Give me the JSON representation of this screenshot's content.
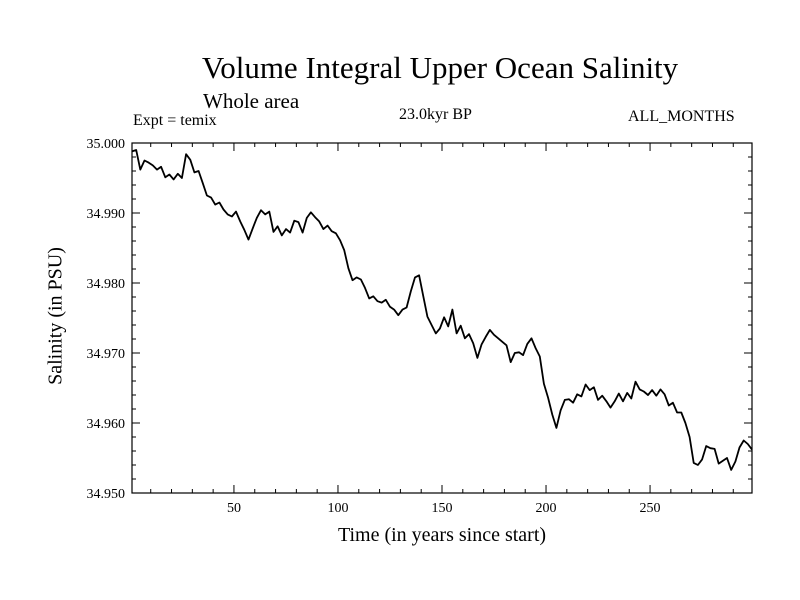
{
  "chart_data": {
    "type": "line",
    "title": "Volume Integral Upper Ocean Salinity",
    "subtitle": "Whole area",
    "annotations": {
      "experiment": "Expt = temix",
      "period": "23.0kyr BP",
      "months": "ALL_MONTHS"
    },
    "xlabel": "Time (in years since start)",
    "ylabel": "Salinity (in PSU)",
    "xlim": [
      1,
      299
    ],
    "ylim": [
      34.95,
      35.0
    ],
    "x_ticks": [
      50,
      100,
      150,
      200,
      250
    ],
    "x_tick_labels": [
      "50",
      "100",
      "150",
      "200",
      "250"
    ],
    "y_ticks": [
      34.95,
      34.96,
      34.97,
      34.98,
      34.99,
      35.0
    ],
    "y_tick_labels": [
      "34.950",
      "34.960",
      "34.970",
      "34.980",
      "34.990",
      "35.000"
    ],
    "grid": false,
    "color": "#000000",
    "series": [
      {
        "name": "Salinity",
        "x": [
          1,
          3,
          5,
          7,
          9,
          11,
          13,
          15,
          17,
          19,
          21,
          23,
          25,
          27,
          29,
          31,
          33,
          35,
          37,
          39,
          41,
          43,
          45,
          47,
          49,
          51,
          53,
          55,
          57,
          59,
          61,
          63,
          65,
          67,
          69,
          71,
          73,
          75,
          77,
          79,
          81,
          83,
          85,
          87,
          89,
          91,
          93,
          95,
          97,
          99,
          101,
          103,
          105,
          107,
          109,
          111,
          113,
          115,
          117,
          119,
          121,
          123,
          125,
          127,
          129,
          131,
          133,
          135,
          137,
          139,
          141,
          143,
          145,
          147,
          149,
          151,
          153,
          155,
          157,
          159,
          161,
          163,
          165,
          167,
          169,
          171,
          173,
          175,
          177,
          179,
          181,
          183,
          185,
          187,
          189,
          191,
          193,
          195,
          197,
          199,
          201,
          203,
          205,
          207,
          209,
          211,
          213,
          215,
          217,
          219,
          221,
          223,
          225,
          227,
          229,
          231,
          233,
          235,
          237,
          239,
          241,
          243,
          245,
          247,
          249,
          251,
          253,
          255,
          257,
          259,
          261,
          263,
          265,
          267,
          269,
          271,
          273,
          275,
          277,
          279,
          281,
          283,
          285,
          287,
          289,
          291,
          293,
          295,
          297,
          299
        ],
        "values": [
          34.9988,
          34.999,
          34.9962,
          34.9975,
          34.9972,
          34.9968,
          34.9962,
          34.9966,
          34.9951,
          34.9955,
          34.9948,
          34.9956,
          34.995,
          34.9984,
          34.9976,
          34.9958,
          34.996,
          34.9943,
          34.9925,
          34.9922,
          34.9912,
          34.9915,
          34.9905,
          34.9898,
          34.9895,
          34.9902,
          34.9888,
          34.9876,
          34.9862,
          34.9878,
          34.9893,
          34.9904,
          34.9898,
          34.9902,
          34.9873,
          34.9881,
          34.9868,
          34.9877,
          34.9872,
          34.9889,
          34.9887,
          34.9872,
          34.9893,
          34.9901,
          34.9894,
          34.9888,
          34.9877,
          34.9882,
          34.9874,
          34.9871,
          34.9861,
          34.9847,
          34.9821,
          34.9804,
          34.9808,
          34.9805,
          34.9793,
          34.9778,
          34.9781,
          34.9774,
          34.9772,
          34.9776,
          34.9766,
          34.9762,
          34.9754,
          34.9762,
          34.9765,
          34.9788,
          34.9808,
          34.9811,
          34.9781,
          34.9752,
          34.974,
          34.9728,
          34.9735,
          34.9751,
          34.9738,
          34.9762,
          34.9728,
          34.9739,
          34.9721,
          34.9727,
          34.9714,
          34.9693,
          34.9712,
          34.9723,
          34.9733,
          34.9726,
          34.9721,
          34.9716,
          34.9711,
          34.9687,
          34.97,
          34.9701,
          34.9697,
          34.9713,
          34.9721,
          34.9707,
          34.9695,
          34.9656,
          34.9636,
          34.9612,
          34.9593,
          34.9618,
          34.9633,
          34.9634,
          34.9629,
          34.9641,
          34.9638,
          34.9655,
          34.9647,
          34.9651,
          34.9633,
          34.9639,
          34.9631,
          34.9622,
          34.9631,
          34.9642,
          34.9631,
          34.9643,
          34.9635,
          34.9659,
          34.9648,
          34.9645,
          34.964,
          34.9647,
          34.9639,
          34.9648,
          34.9641,
          34.9625,
          34.9629,
          34.9615,
          34.9615,
          34.96,
          34.958,
          34.9543,
          34.954,
          34.9548,
          34.9567,
          34.9564,
          34.9563,
          34.9542,
          34.9546,
          34.955,
          34.9533,
          34.9545,
          34.9565,
          34.9575,
          34.957,
          34.9562
        ]
      }
    ]
  }
}
